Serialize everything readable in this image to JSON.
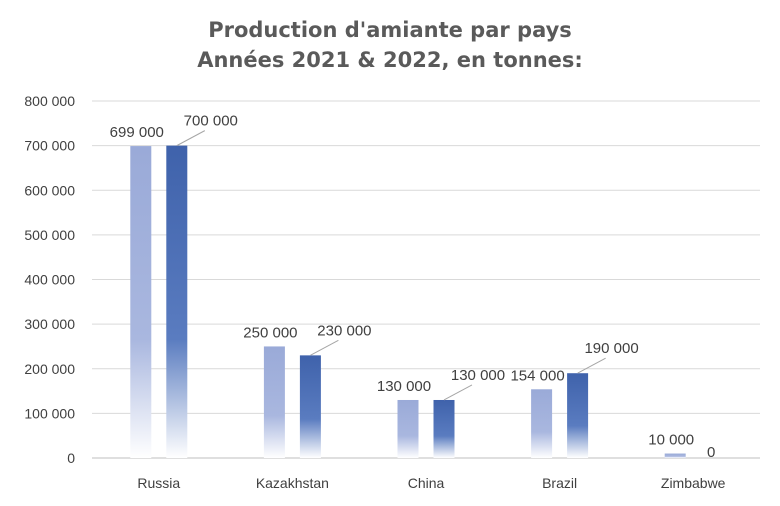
{
  "colors": {
    "series_2021": "#9aaad8",
    "series_2022": "#3f62ab",
    "grid": "#d9d9d9",
    "axis": "#bfbfbf",
    "text": "#404040",
    "leader": "#a6a6a6"
  },
  "chart_data": {
    "type": "bar",
    "title": "Production d'amiante par pays",
    "subtitle": "Années 2021 & 2022, en tonnes:",
    "categories": [
      "Russia",
      "Kazakhstan",
      "China",
      "Brazil",
      "Zimbabwe"
    ],
    "series": [
      {
        "values": [
          699000,
          250000,
          130000,
          154000,
          10000
        ]
      },
      {
        "values": [
          700000,
          230000,
          130000,
          190000,
          0
        ]
      }
    ],
    "data_labels": [
      [
        "699 000",
        "250 000",
        "130 000",
        "154 000",
        "10 000"
      ],
      [
        "700 000",
        "230 000",
        "130 000",
        "190 000",
        "0"
      ]
    ],
    "ylim": [
      0,
      800000
    ],
    "yticks": [
      0,
      100000,
      200000,
      300000,
      400000,
      500000,
      600000,
      700000,
      800000
    ],
    "ytick_labels": [
      "0",
      "100 000",
      "200 000",
      "300 000",
      "400 000",
      "500 000",
      "600 000",
      "700 000",
      "800 000"
    ],
    "grid": true,
    "legend": "none"
  }
}
